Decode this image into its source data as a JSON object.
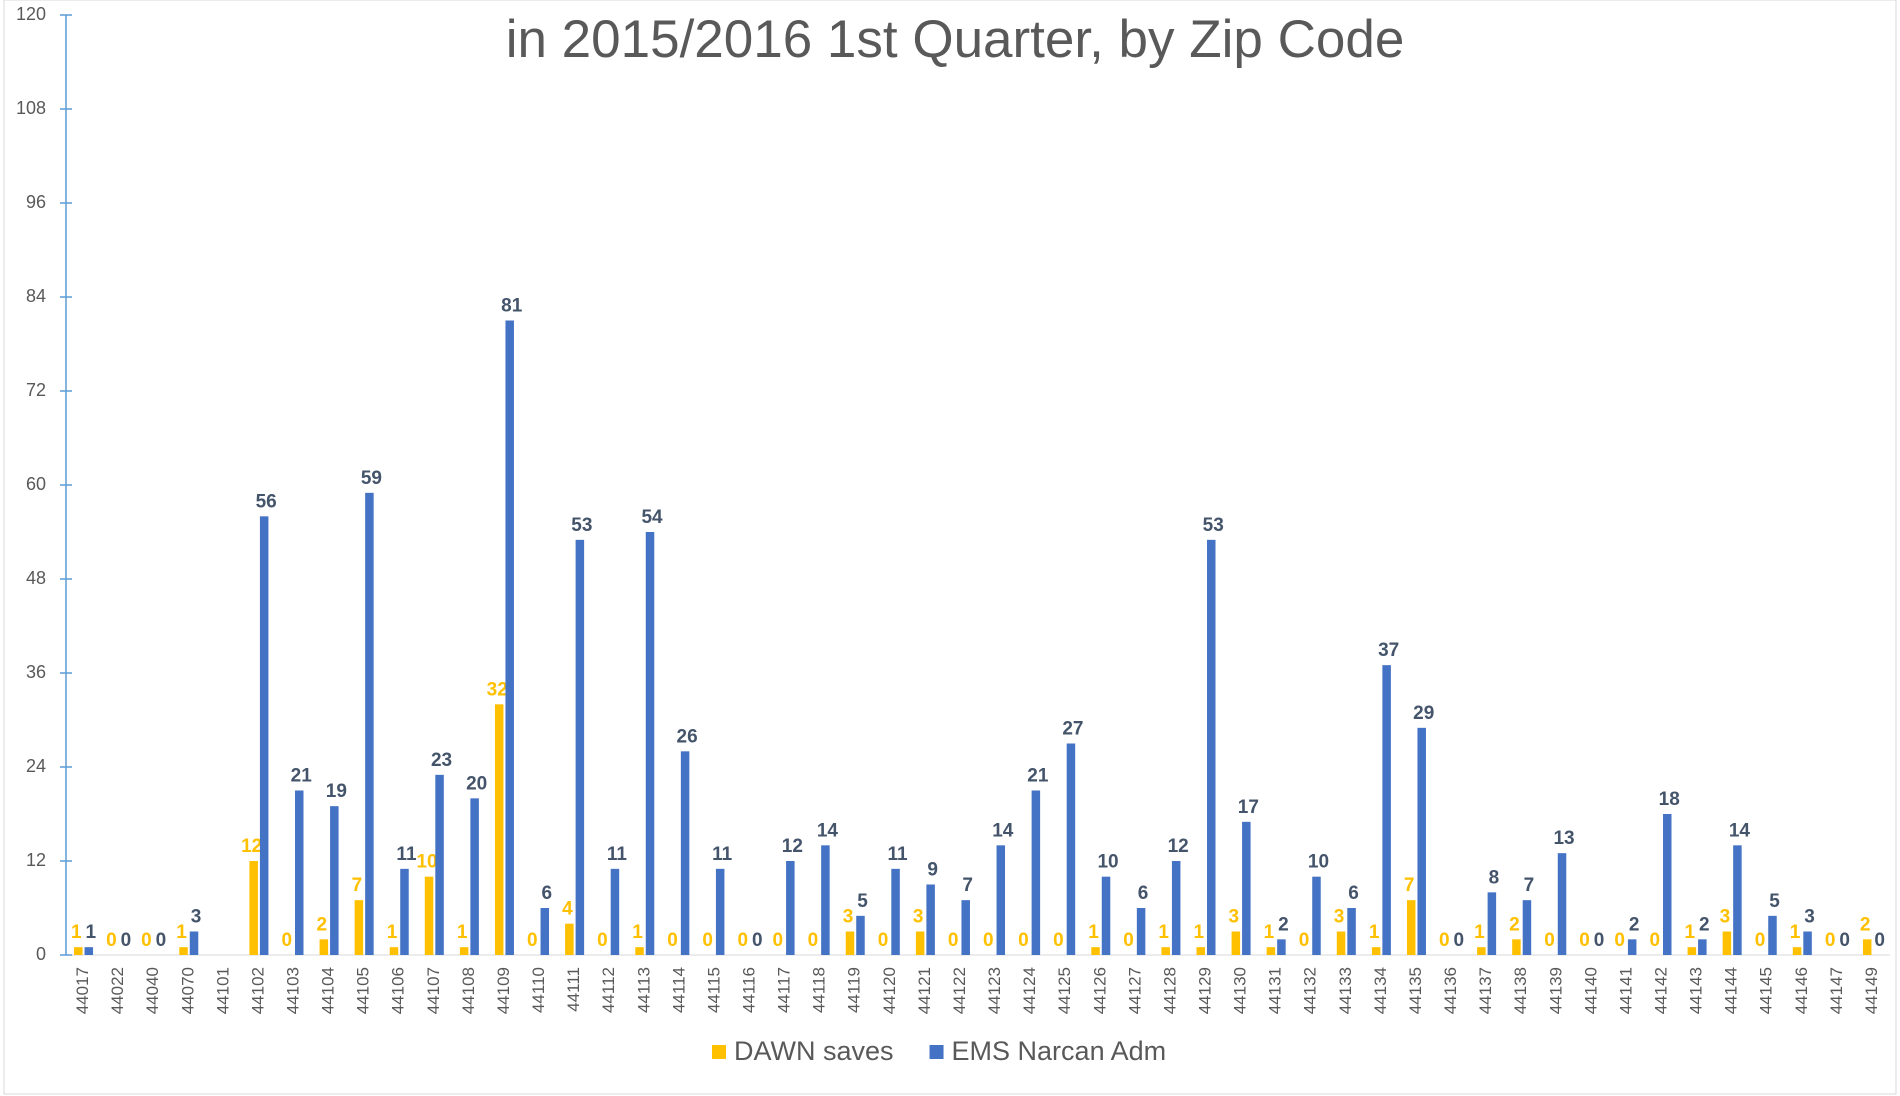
{
  "chart_data": {
    "type": "bar",
    "title": "in 2015/2016 1st Quarter, by Zip Code",
    "categories": [
      "44017",
      "44022",
      "44040",
      "44070",
      "44101",
      "44102",
      "44103",
      "44104",
      "44105",
      "44106",
      "44107",
      "44108",
      "44109",
      "44110",
      "44111",
      "44112",
      "44113",
      "44114",
      "44115",
      "44116",
      "44117",
      "44118",
      "44119",
      "44120",
      "44121",
      "44122",
      "44123",
      "44124",
      "44125",
      "44126",
      "44127",
      "44128",
      "44129",
      "44130",
      "44131",
      "44132",
      "44133",
      "44134",
      "44135",
      "44136",
      "44137",
      "44138",
      "44139",
      "44140",
      "44141",
      "44142",
      "44143",
      "44144",
      "44145",
      "44146",
      "44147",
      "44149"
    ],
    "series": [
      {
        "name": "DAWN saves",
        "color": "#ffc000",
        "values": [
          1,
          0,
          0,
          1,
          null,
          12,
          0,
          2,
          7,
          1,
          10,
          1,
          32,
          0,
          4,
          0,
          1,
          0,
          0,
          0,
          0,
          0,
          3,
          0,
          3,
          0,
          0,
          0,
          0,
          1,
          0,
          1,
          1,
          3,
          1,
          0,
          3,
          1,
          7,
          0,
          1,
          2,
          0,
          0,
          0,
          0,
          1,
          3,
          0,
          1,
          0,
          2
        ]
      },
      {
        "name": "EMS Narcan Adm",
        "color": "#4472c4",
        "values": [
          1,
          0,
          0,
          3,
          null,
          56,
          21,
          19,
          59,
          11,
          23,
          20,
          81,
          6,
          53,
          11,
          54,
          26,
          11,
          0,
          12,
          14,
          5,
          11,
          9,
          7,
          14,
          21,
          27,
          10,
          6,
          12,
          53,
          17,
          2,
          10,
          6,
          37,
          29,
          0,
          8,
          7,
          13,
          0,
          2,
          18,
          2,
          14,
          5,
          3,
          0,
          0
        ]
      }
    ],
    "ylim": [
      0,
      120
    ],
    "yticks": [
      0,
      12,
      24,
      36,
      48,
      60,
      72,
      84,
      96,
      108,
      120
    ],
    "legend": "bottom"
  }
}
